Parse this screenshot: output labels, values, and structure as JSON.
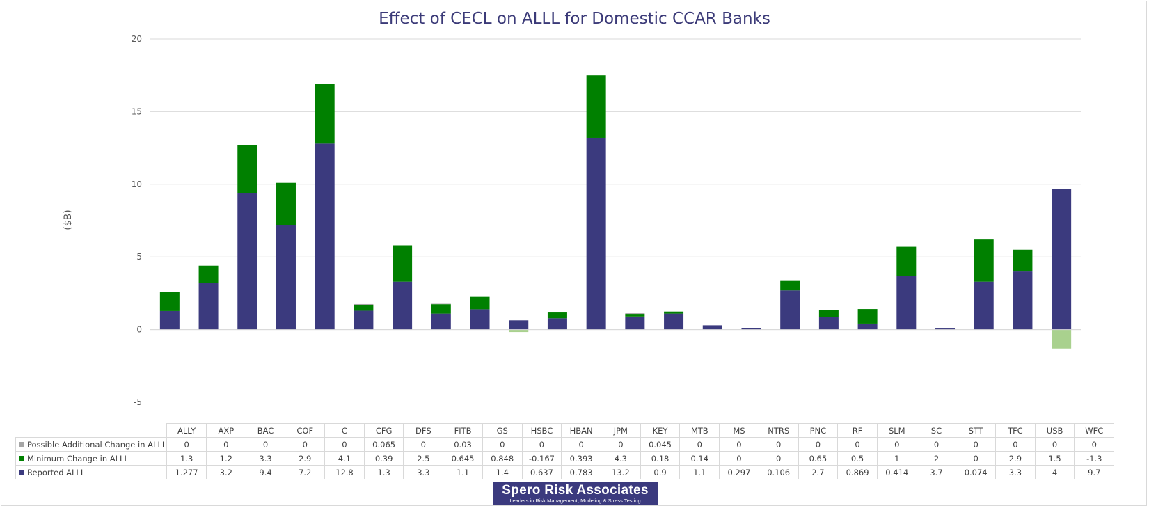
{
  "chart_data": {
    "type": "bar",
    "stacked": true,
    "title": "Effect of CECL on ALLL for Domestic CCAR Banks",
    "ylabel": "($B)",
    "ylim": [
      -5,
      20
    ],
    "yticks": [
      -5,
      0,
      5,
      10,
      15,
      20
    ],
    "grid": true,
    "legend": "data-table",
    "categories": [
      "ALLY",
      "AXP",
      "BAC",
      "COF",
      "C",
      "CFG",
      "DFS",
      "FITB",
      "GS",
      "HSBC",
      "HBAN",
      "JPM",
      "KEY",
      "MTB",
      "MS",
      "NTRS",
      "PNC",
      "RF",
      "SLM",
      "SC",
      "STT",
      "TFC",
      "USB",
      "WFC"
    ],
    "series": [
      {
        "name": "Possible Additional Change in ALLL",
        "color": "#a6a6a6",
        "values": [
          0,
          0,
          0,
          0,
          0,
          0.065,
          0,
          0.03,
          0,
          0,
          0,
          0,
          0.045,
          0,
          0,
          0,
          0,
          0,
          0,
          0,
          0,
          0,
          0,
          0
        ]
      },
      {
        "name": "Minimum Change in ALLL",
        "color": "#008000",
        "negative_color": "#a9d18e",
        "values": [
          1.3,
          1.2,
          3.3,
          2.9,
          4.1,
          0.39,
          2.5,
          0.645,
          0.848,
          -0.167,
          0.393,
          4.3,
          0.18,
          0.14,
          0,
          0,
          0.65,
          0.5,
          1,
          2,
          0,
          2.9,
          1.5,
          -1.3
        ]
      },
      {
        "name": "Reported ALLL",
        "color": "#3b3a7e",
        "values": [
          1.277,
          3.2,
          9.4,
          7.2,
          12.8,
          1.3,
          3.3,
          1.1,
          1.4,
          0.637,
          0.783,
          13.2,
          0.9,
          1.1,
          0.297,
          0.106,
          2.7,
          0.869,
          0.414,
          3.7,
          0.074,
          3.3,
          4,
          9.7
        ]
      }
    ]
  },
  "logo": {
    "name": "Spero Risk Associates",
    "tagline": "Leaders in Risk Management, Modeling & Stress Testing"
  }
}
